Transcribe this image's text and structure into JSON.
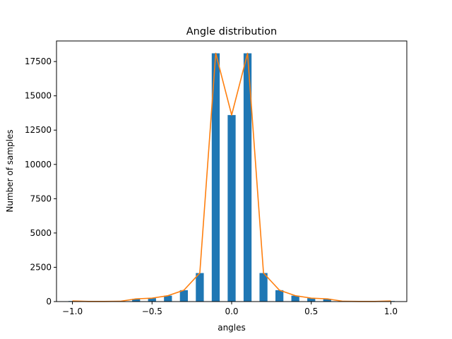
{
  "chart_data": {
    "type": "bar",
    "title": "Angle distribution",
    "xlabel": "angles",
    "ylabel": "Number of samples",
    "xlim": [
      -1.1,
      1.1
    ],
    "ylim": [
      0,
      19000
    ],
    "x_ticks": [
      -1.0,
      -0.5,
      0.0,
      0.5,
      1.0
    ],
    "x_tick_labels": [
      "−1.0",
      "−0.5",
      "0.0",
      "0.5",
      "1.0"
    ],
    "y_ticks": [
      0,
      2500,
      5000,
      7500,
      10000,
      12500,
      15000,
      17500
    ],
    "y_tick_labels": [
      "0",
      "2500",
      "5000",
      "7500",
      "10000",
      "12500",
      "15000",
      "17500"
    ],
    "bar_width": 0.05,
    "grid": false,
    "series": [
      {
        "type": "bar",
        "color": "#1f77b4",
        "x": [
          -1.0,
          -0.9,
          -0.8,
          -0.7,
          -0.6,
          -0.5,
          -0.4,
          -0.3,
          -0.2,
          -0.1,
          0.0,
          0.1,
          0.2,
          0.3,
          0.4,
          0.5,
          0.6,
          0.7,
          0.8,
          0.9,
          1.0
        ],
        "values": [
          40,
          10,
          10,
          20,
          200,
          250,
          430,
          830,
          2080,
          18100,
          13600,
          18100,
          2080,
          830,
          430,
          250,
          200,
          20,
          10,
          10,
          40
        ]
      },
      {
        "type": "line",
        "color": "#ff7f0e",
        "x": [
          -1.0,
          -0.9,
          -0.8,
          -0.7,
          -0.6,
          -0.5,
          -0.4,
          -0.3,
          -0.2,
          -0.1,
          0.0,
          0.1,
          0.2,
          0.3,
          0.4,
          0.5,
          0.6,
          0.7,
          0.8,
          0.9,
          1.0
        ],
        "values": [
          40,
          10,
          10,
          20,
          200,
          250,
          430,
          830,
          2080,
          18100,
          13600,
          18100,
          2080,
          830,
          430,
          250,
          200,
          20,
          10,
          10,
          40
        ]
      }
    ]
  }
}
